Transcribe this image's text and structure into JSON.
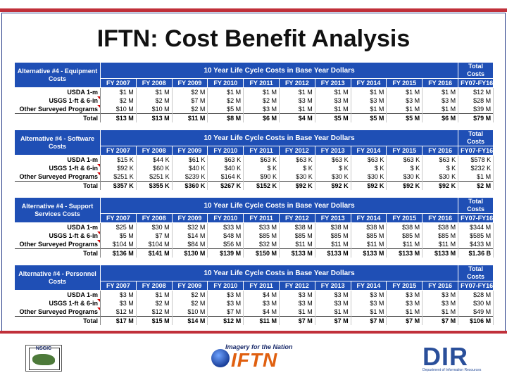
{
  "slide": {
    "title": "IFTN: Cost Benefit Analysis"
  },
  "years": [
    "FY 2007",
    "FY 2008",
    "FY 2009",
    "FY 2010",
    "FY 2011",
    "FY 2012",
    "FY 2013",
    "FY 2014",
    "FY 2015",
    "FY 2016"
  ],
  "total_header": "Total Costs",
  "total_years": "FY07-FY16",
  "lcc_header": "10 Year Life Cycle Costs in Base Year Dollars",
  "tables": [
    {
      "label": "Alternative #4 - Equipment Costs",
      "rows": [
        {
          "name": "USDA 1-m",
          "values": [
            "$1 M",
            "$1 M",
            "$2 M",
            "$1 M",
            "$1 M",
            "$1 M",
            "$1 M",
            "$1 M",
            "$1 M",
            "$1 M"
          ],
          "total": "$12 M"
        },
        {
          "name": "USGS 1-ft & 6-in",
          "values": [
            "$2 M",
            "$2 M",
            "$7 M",
            "$2 M",
            "$2 M",
            "$3 M",
            "$3 M",
            "$3 M",
            "$3 M",
            "$3 M"
          ],
          "total": "$28 M"
        },
        {
          "name": "Other Surveyed Programs",
          "values": [
            "$10 M",
            "$10 M",
            "$2 M",
            "$5 M",
            "$3 M",
            "$1 M",
            "$1 M",
            "$1 M",
            "$1 M",
            "$1 M"
          ],
          "total": "$39 M"
        },
        {
          "name": "Total",
          "values": [
            "$13 M",
            "$13 M",
            "$11 M",
            "$8 M",
            "$6 M",
            "$4 M",
            "$5 M",
            "$5 M",
            "$5 M",
            "$6 M"
          ],
          "total": "$79 M"
        }
      ]
    },
    {
      "label": "Alternative #4 - Software Costs",
      "rows": [
        {
          "name": "USDA 1-m",
          "values": [
            "$15 K",
            "$44 K",
            "$61 K",
            "$63 K",
            "$63 K",
            "$63 K",
            "$63 K",
            "$63 K",
            "$63 K",
            "$63 K"
          ],
          "total": "$578 K"
        },
        {
          "name": "USGS 1-ft & 6-in",
          "values": [
            "$92 K",
            "$60 K",
            "$40 K",
            "$40 K",
            "$ K",
            "$ K",
            "$ K",
            "$ K",
            "$ K",
            "$ K"
          ],
          "total": "$232 K"
        },
        {
          "name": "Other Surveyed Programs",
          "values": [
            "$251 K",
            "$251 K",
            "$239 K",
            "$164 K",
            "$90 K",
            "$30 K",
            "$30 K",
            "$30 K",
            "$30 K",
            "$30 K"
          ],
          "total": "$1 M"
        },
        {
          "name": "Total",
          "values": [
            "$357 K",
            "$355 K",
            "$360 K",
            "$267 K",
            "$152 K",
            "$92 K",
            "$92 K",
            "$92 K",
            "$92 K",
            "$92 K"
          ],
          "total": "$2 M"
        }
      ]
    },
    {
      "label": "Alternative #4 - Support Services Costs",
      "rows": [
        {
          "name": "USDA 1-m",
          "values": [
            "$25 M",
            "$30 M",
            "$32 M",
            "$33 M",
            "$33 M",
            "$38 M",
            "$38 M",
            "$38 M",
            "$38 M",
            "$38 M"
          ],
          "total": "$344 M"
        },
        {
          "name": "USGS 1-ft & 6-in",
          "values": [
            "$5 M",
            "$7 M",
            "$14 M",
            "$48 M",
            "$85 M",
            "$85 M",
            "$85 M",
            "$85 M",
            "$85 M",
            "$85 M"
          ],
          "total": "$585 M"
        },
        {
          "name": "Other Surveyed Programs",
          "values": [
            "$104 M",
            "$104 M",
            "$84 M",
            "$56 M",
            "$32 M",
            "$11 M",
            "$11 M",
            "$11 M",
            "$11 M",
            "$11 M"
          ],
          "total": "$433 M"
        },
        {
          "name": "Total",
          "values": [
            "$136 M",
            "$141 M",
            "$130 M",
            "$139 M",
            "$150 M",
            "$133 M",
            "$133 M",
            "$133 M",
            "$133 M",
            "$133 M"
          ],
          "total": "$1.36 B"
        }
      ]
    },
    {
      "label": "Alternative #4 - Personnel Costs",
      "rows": [
        {
          "name": "USDA 1-m",
          "values": [
            "$3 M",
            "$1 M",
            "$2 M",
            "$3 M",
            "$4 M",
            "$3 M",
            "$3 M",
            "$3 M",
            "$3 M",
            "$3 M"
          ],
          "total": "$28 M"
        },
        {
          "name": "USGS 1-ft & 6-in",
          "values": [
            "$3 M",
            "$2 M",
            "$2 M",
            "$3 M",
            "$3 M",
            "$3 M",
            "$3 M",
            "$3 M",
            "$3 M",
            "$3 M"
          ],
          "total": "$30 M"
        },
        {
          "name": "Other Surveyed Programs",
          "values": [
            "$12 M",
            "$12 M",
            "$10 M",
            "$7 M",
            "$4 M",
            "$1 M",
            "$1 M",
            "$1 M",
            "$1 M",
            "$1 M"
          ],
          "total": "$49 M"
        },
        {
          "name": "Total",
          "values": [
            "$17 M",
            "$15 M",
            "$14 M",
            "$12 M",
            "$11 M",
            "$7 M",
            "$7 M",
            "$7 M",
            "$7 M",
            "$7 M"
          ],
          "total": "$106 M"
        }
      ]
    }
  ],
  "logos": {
    "nsgic": "NSGIC",
    "iftn_tagline": "Imagery for the Nation",
    "iftn": "IFTN",
    "dir": "DIR",
    "dir_sub": "Department of Information Resources"
  },
  "colors": {
    "header_blue": "#1f4fb5",
    "accent_red": "#c0303a",
    "iftn_orange": "#e06010"
  }
}
